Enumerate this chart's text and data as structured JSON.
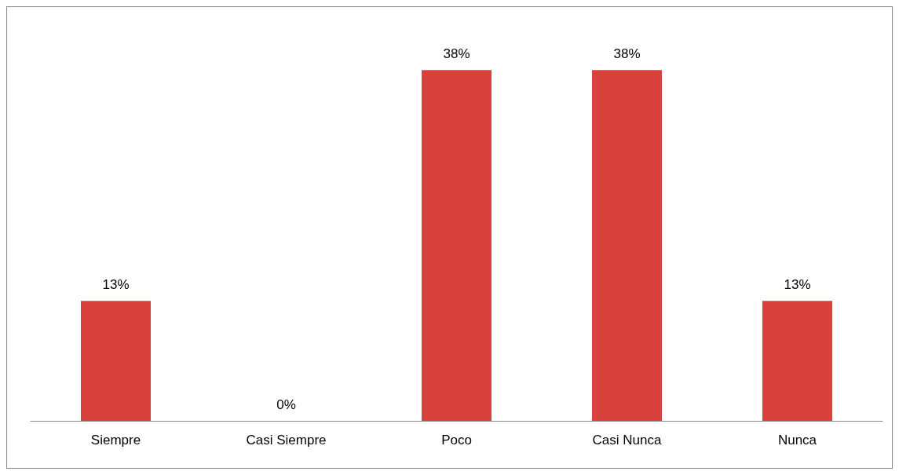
{
  "chart_data": {
    "type": "bar",
    "categories": [
      "Siempre",
      "Casi Siempre",
      "Poco",
      "Casi Nunca",
      "Nunca"
    ],
    "values": [
      13,
      0,
      38,
      38,
      13
    ],
    "value_labels": [
      "13%",
      "0%",
      "38%",
      "38%",
      "13%"
    ],
    "color": "#d9413c"
  }
}
